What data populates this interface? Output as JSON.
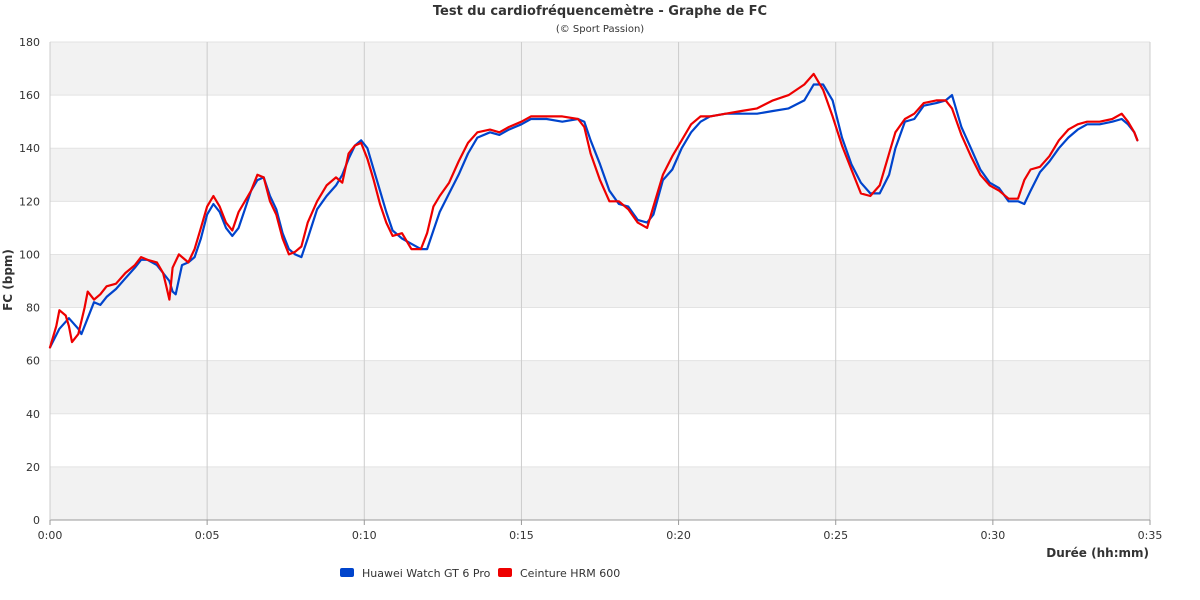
{
  "chart_data": {
    "type": "line",
    "title": "Test du cardiofréquencemètre - Graphe de FC",
    "subtitle": "(© Sport Passion)",
    "xlabel": "Durée (hh:mm)",
    "ylabel": "FC (bpm)",
    "xlim": [
      0,
      35
    ],
    "ylim": [
      0,
      180
    ],
    "x_ticks": [
      0,
      5,
      10,
      15,
      20,
      25,
      30,
      35
    ],
    "x_tick_labels": [
      "0:00",
      "0:05",
      "0:10",
      "0:15",
      "0:20",
      "0:25",
      "0:30",
      "0:35"
    ],
    "y_ticks": [
      0,
      20,
      40,
      60,
      80,
      100,
      120,
      140,
      160,
      180
    ],
    "y_tick_labels": [
      "0",
      "20",
      "40",
      "60",
      "80",
      "100",
      "120",
      "140",
      "160",
      "180"
    ],
    "grid": true,
    "legend_position": "bottom-left",
    "series": [
      {
        "name": "Huawei Watch GT 6 Pro",
        "color": "#0044cc",
        "points": [
          [
            0,
            65
          ],
          [
            0.3,
            72
          ],
          [
            0.6,
            76
          ],
          [
            0.9,
            72
          ],
          [
            1.0,
            70
          ],
          [
            1.2,
            76
          ],
          [
            1.4,
            82
          ],
          [
            1.6,
            81
          ],
          [
            1.8,
            84
          ],
          [
            2.1,
            87
          ],
          [
            2.4,
            91
          ],
          [
            2.7,
            95
          ],
          [
            2.9,
            98
          ],
          [
            3.1,
            98
          ],
          [
            3.4,
            96
          ],
          [
            3.6,
            93
          ],
          [
            3.8,
            90
          ],
          [
            3.9,
            86
          ],
          [
            4.0,
            85
          ],
          [
            4.2,
            96
          ],
          [
            4.4,
            97
          ],
          [
            4.6,
            99
          ],
          [
            4.8,
            106
          ],
          [
            5.0,
            115
          ],
          [
            5.2,
            119
          ],
          [
            5.4,
            116
          ],
          [
            5.6,
            110
          ],
          [
            5.8,
            107
          ],
          [
            6.0,
            110
          ],
          [
            6.2,
            117
          ],
          [
            6.4,
            124
          ],
          [
            6.6,
            128
          ],
          [
            6.8,
            129
          ],
          [
            7.0,
            122
          ],
          [
            7.2,
            117
          ],
          [
            7.4,
            108
          ],
          [
            7.6,
            102
          ],
          [
            7.8,
            100
          ],
          [
            8.0,
            99
          ],
          [
            8.2,
            106
          ],
          [
            8.5,
            117
          ],
          [
            8.8,
            122
          ],
          [
            9.1,
            126
          ],
          [
            9.3,
            130
          ],
          [
            9.5,
            136
          ],
          [
            9.7,
            141
          ],
          [
            9.9,
            143
          ],
          [
            10.1,
            140
          ],
          [
            10.3,
            132
          ],
          [
            10.5,
            124
          ],
          [
            10.7,
            116
          ],
          [
            10.9,
            109
          ],
          [
            11.2,
            106
          ],
          [
            11.5,
            104
          ],
          [
            11.8,
            102
          ],
          [
            12.0,
            102
          ],
          [
            12.2,
            109
          ],
          [
            12.4,
            116
          ],
          [
            12.7,
            123
          ],
          [
            13.0,
            130
          ],
          [
            13.3,
            138
          ],
          [
            13.6,
            144
          ],
          [
            14.0,
            146
          ],
          [
            14.3,
            145
          ],
          [
            14.6,
            147
          ],
          [
            15.0,
            149
          ],
          [
            15.3,
            151
          ],
          [
            15.8,
            151
          ],
          [
            16.3,
            150
          ],
          [
            16.8,
            151
          ],
          [
            17.0,
            150
          ],
          [
            17.2,
            143
          ],
          [
            17.5,
            134
          ],
          [
            17.8,
            124
          ],
          [
            18.1,
            119
          ],
          [
            18.4,
            118
          ],
          [
            18.7,
            113
          ],
          [
            19.0,
            112
          ],
          [
            19.2,
            115
          ],
          [
            19.5,
            128
          ],
          [
            19.8,
            132
          ],
          [
            20.1,
            140
          ],
          [
            20.4,
            146
          ],
          [
            20.7,
            150
          ],
          [
            21.0,
            152
          ],
          [
            21.5,
            153
          ],
          [
            22.0,
            153
          ],
          [
            22.5,
            153
          ],
          [
            23.0,
            154
          ],
          [
            23.5,
            155
          ],
          [
            24.0,
            158
          ],
          [
            24.3,
            164
          ],
          [
            24.6,
            164
          ],
          [
            24.9,
            158
          ],
          [
            25.2,
            144
          ],
          [
            25.5,
            134
          ],
          [
            25.8,
            127
          ],
          [
            26.1,
            123
          ],
          [
            26.4,
            123
          ],
          [
            26.7,
            130
          ],
          [
            26.9,
            140
          ],
          [
            27.2,
            150
          ],
          [
            27.5,
            151
          ],
          [
            27.8,
            156
          ],
          [
            28.2,
            157
          ],
          [
            28.5,
            158
          ],
          [
            28.7,
            160
          ],
          [
            29.0,
            148
          ],
          [
            29.3,
            140
          ],
          [
            29.6,
            132
          ],
          [
            29.9,
            127
          ],
          [
            30.2,
            125
          ],
          [
            30.5,
            120
          ],
          [
            30.8,
            120
          ],
          [
            31.0,
            119
          ],
          [
            31.2,
            124
          ],
          [
            31.5,
            131
          ],
          [
            31.8,
            135
          ],
          [
            32.1,
            140
          ],
          [
            32.4,
            144
          ],
          [
            32.7,
            147
          ],
          [
            33.0,
            149
          ],
          [
            33.4,
            149
          ],
          [
            33.8,
            150
          ],
          [
            34.1,
            151
          ],
          [
            34.3,
            149
          ],
          [
            34.5,
            146
          ],
          [
            34.6,
            143
          ]
        ]
      },
      {
        "name": "Ceinture HRM 600",
        "color": "#ee0000",
        "points": [
          [
            0,
            65
          ],
          [
            0.2,
            73
          ],
          [
            0.3,
            79
          ],
          [
            0.5,
            77
          ],
          [
            0.6,
            73
          ],
          [
            0.7,
            67
          ],
          [
            0.9,
            70
          ],
          [
            1.1,
            80
          ],
          [
            1.2,
            86
          ],
          [
            1.4,
            83
          ],
          [
            1.6,
            85
          ],
          [
            1.8,
            88
          ],
          [
            2.1,
            89
          ],
          [
            2.4,
            93
          ],
          [
            2.7,
            96
          ],
          [
            2.9,
            99
          ],
          [
            3.1,
            98
          ],
          [
            3.4,
            97
          ],
          [
            3.6,
            93
          ],
          [
            3.7,
            88
          ],
          [
            3.8,
            83
          ],
          [
            3.9,
            95
          ],
          [
            4.1,
            100
          ],
          [
            4.4,
            97
          ],
          [
            4.6,
            102
          ],
          [
            4.8,
            110
          ],
          [
            5.0,
            118
          ],
          [
            5.2,
            122
          ],
          [
            5.4,
            118
          ],
          [
            5.6,
            112
          ],
          [
            5.8,
            109
          ],
          [
            6.0,
            116
          ],
          [
            6.2,
            120
          ],
          [
            6.4,
            124
          ],
          [
            6.6,
            130
          ],
          [
            6.8,
            129
          ],
          [
            7.0,
            120
          ],
          [
            7.2,
            115
          ],
          [
            7.4,
            106
          ],
          [
            7.6,
            100
          ],
          [
            7.8,
            101
          ],
          [
            8.0,
            103
          ],
          [
            8.2,
            112
          ],
          [
            8.5,
            120
          ],
          [
            8.8,
            126
          ],
          [
            9.1,
            129
          ],
          [
            9.3,
            127
          ],
          [
            9.5,
            138
          ],
          [
            9.7,
            141
          ],
          [
            9.9,
            142
          ],
          [
            10.1,
            136
          ],
          [
            10.3,
            128
          ],
          [
            10.5,
            119
          ],
          [
            10.7,
            112
          ],
          [
            10.9,
            107
          ],
          [
            11.2,
            108
          ],
          [
            11.5,
            102
          ],
          [
            11.8,
            102
          ],
          [
            12.0,
            108
          ],
          [
            12.2,
            118
          ],
          [
            12.4,
            122
          ],
          [
            12.7,
            127
          ],
          [
            13.0,
            135
          ],
          [
            13.3,
            142
          ],
          [
            13.6,
            146
          ],
          [
            14.0,
            147
          ],
          [
            14.3,
            146
          ],
          [
            14.6,
            148
          ],
          [
            15.0,
            150
          ],
          [
            15.3,
            152
          ],
          [
            15.8,
            152
          ],
          [
            16.3,
            152
          ],
          [
            16.8,
            151
          ],
          [
            17.0,
            148
          ],
          [
            17.2,
            138
          ],
          [
            17.5,
            128
          ],
          [
            17.8,
            120
          ],
          [
            18.1,
            120
          ],
          [
            18.4,
            117
          ],
          [
            18.7,
            112
          ],
          [
            19.0,
            110
          ],
          [
            19.2,
            118
          ],
          [
            19.5,
            130
          ],
          [
            19.8,
            137
          ],
          [
            20.1,
            143
          ],
          [
            20.4,
            149
          ],
          [
            20.7,
            152
          ],
          [
            21.0,
            152
          ],
          [
            21.5,
            153
          ],
          [
            22.0,
            154
          ],
          [
            22.5,
            155
          ],
          [
            23.0,
            158
          ],
          [
            23.5,
            160
          ],
          [
            24.0,
            164
          ],
          [
            24.3,
            168
          ],
          [
            24.6,
            162
          ],
          [
            24.9,
            152
          ],
          [
            25.2,
            141
          ],
          [
            25.5,
            132
          ],
          [
            25.8,
            123
          ],
          [
            26.1,
            122
          ],
          [
            26.4,
            126
          ],
          [
            26.7,
            138
          ],
          [
            26.9,
            146
          ],
          [
            27.2,
            151
          ],
          [
            27.5,
            153
          ],
          [
            27.8,
            157
          ],
          [
            28.2,
            158
          ],
          [
            28.5,
            158
          ],
          [
            28.7,
            155
          ],
          [
            29.0,
            145
          ],
          [
            29.3,
            137
          ],
          [
            29.6,
            130
          ],
          [
            29.9,
            126
          ],
          [
            30.2,
            124
          ],
          [
            30.5,
            121
          ],
          [
            30.8,
            121
          ],
          [
            31.0,
            128
          ],
          [
            31.2,
            132
          ],
          [
            31.5,
            133
          ],
          [
            31.8,
            137
          ],
          [
            32.1,
            143
          ],
          [
            32.4,
            147
          ],
          [
            32.7,
            149
          ],
          [
            33.0,
            150
          ],
          [
            33.4,
            150
          ],
          [
            33.8,
            151
          ],
          [
            34.1,
            153
          ],
          [
            34.3,
            150
          ],
          [
            34.5,
            146
          ],
          [
            34.6,
            143
          ]
        ]
      }
    ]
  }
}
